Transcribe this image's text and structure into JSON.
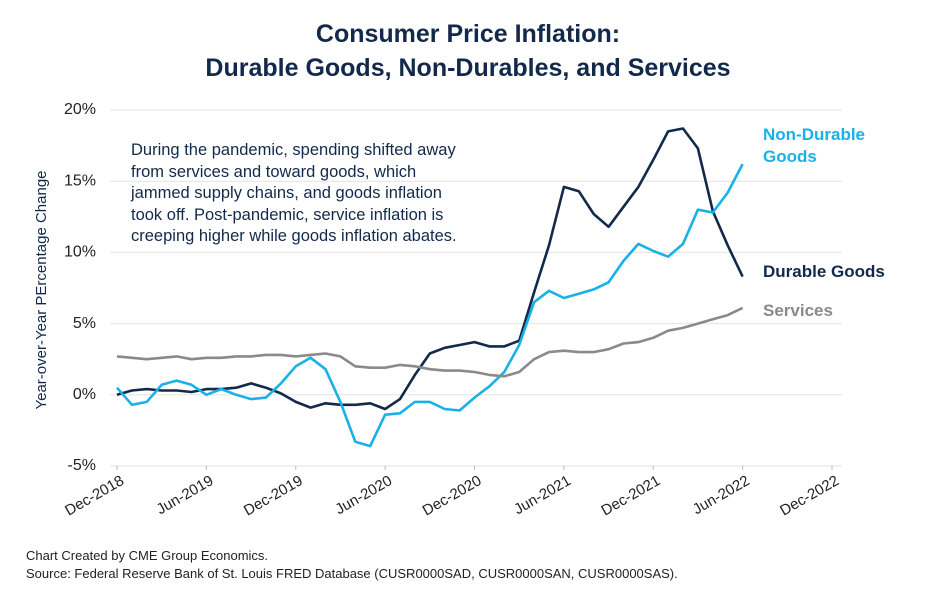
{
  "chart_data": {
    "type": "line",
    "title": "Consumer Price Inflation:",
    "subtitle": "Durable Goods, Non-Durables, and Services",
    "y_label": "Year-over-Year PErcentage Change",
    "annotation": "During the pandemic, spending shifted away from services and toward goods, which jammed supply chains, and goods inflation took off.  Post-pandemic, service inflation is creeping higher while goods inflation abates.",
    "notes": [
      "Chart Created by CME Group Economics.",
      "Source: Federal Reserve Bank of St. Louis FRED Database (CUSR0000SAD, CUSR0000SAN, CUSR0000SAS)."
    ],
    "x": [
      "2018-12",
      "2019-01",
      "2019-02",
      "2019-03",
      "2019-04",
      "2019-05",
      "2019-06",
      "2019-07",
      "2019-08",
      "2019-09",
      "2019-10",
      "2019-11",
      "2019-12",
      "2020-01",
      "2020-02",
      "2020-03",
      "2020-04",
      "2020-05",
      "2020-06",
      "2020-07",
      "2020-08",
      "2020-09",
      "2020-10",
      "2020-11",
      "2020-12",
      "2021-01",
      "2021-02",
      "2021-03",
      "2021-04",
      "2021-05",
      "2021-06",
      "2021-07",
      "2021-08",
      "2021-09",
      "2021-10",
      "2021-11",
      "2021-12",
      "2022-01",
      "2022-02",
      "2022-03",
      "2022-04",
      "2022-05",
      "2022-06"
    ],
    "series": [
      {
        "name": "Durable Goods",
        "color": "#13294b",
        "values": [
          0,
          0.3,
          0.4,
          0.3,
          0.3,
          0.2,
          0.4,
          0.4,
          0.5,
          0.8,
          0.5,
          0.1,
          -0.5,
          -0.9,
          -0.6,
          -0.7,
          -0.7,
          -0.6,
          -1.0,
          -0.3,
          1.4,
          2.9,
          3.3,
          3.5,
          3.7,
          3.4,
          3.4,
          3.8,
          7.2,
          10.5,
          14.6,
          14.3,
          12.7,
          11.8,
          13.2,
          14.6,
          16.5,
          18.5,
          18.7,
          17.3,
          12.9,
          10.5,
          8.3
        ]
      },
      {
        "name": "Non-Durable Goods",
        "color": "#1ab0e8",
        "values": [
          0.5,
          -0.7,
          -0.5,
          0.7,
          1.0,
          0.7,
          0.0,
          0.4,
          0.0,
          -0.3,
          -0.2,
          0.8,
          2.0,
          2.6,
          1.8,
          -0.5,
          -3.3,
          -3.6,
          -1.4,
          -1.3,
          -0.5,
          -0.5,
          -1.0,
          -1.1,
          -0.2,
          0.6,
          1.6,
          3.5,
          6.5,
          7.3,
          6.8,
          7.1,
          7.4,
          7.9,
          9.4,
          10.6,
          10.1,
          9.7,
          10.6,
          13.0,
          12.8,
          14.2,
          16.2
        ]
      },
      {
        "name": "Services",
        "color": "#8a8a8a",
        "values": [
          2.7,
          2.6,
          2.5,
          2.6,
          2.7,
          2.5,
          2.6,
          2.6,
          2.7,
          2.7,
          2.8,
          2.8,
          2.7,
          2.8,
          2.9,
          2.7,
          2.0,
          1.9,
          1.9,
          2.1,
          2.0,
          1.8,
          1.7,
          1.7,
          1.6,
          1.4,
          1.3,
          1.6,
          2.5,
          3.0,
          3.1,
          3.0,
          3.0,
          3.2,
          3.6,
          3.7,
          4.0,
          4.5,
          4.7,
          5.0,
          5.3,
          5.6,
          6.1
        ]
      }
    ],
    "xlim": [
      "2018-12",
      "2022-12"
    ],
    "xticks": [
      {
        "value": "2018-12",
        "label": "Dec-2018"
      },
      {
        "value": "2019-06",
        "label": "Jun-2019"
      },
      {
        "value": "2019-12",
        "label": "Dec-2019"
      },
      {
        "value": "2020-06",
        "label": "Jun-2020"
      },
      {
        "value": "2020-12",
        "label": "Dec-2020"
      },
      {
        "value": "2021-06",
        "label": "Jun-2021"
      },
      {
        "value": "2021-12",
        "label": "Dec-2021"
      },
      {
        "value": "2022-06",
        "label": "Jun-2022"
      },
      {
        "value": "2022-12",
        "label": "Dec-2022"
      }
    ],
    "ylim": [
      -5,
      20
    ],
    "yticks": [
      {
        "value": -5,
        "label": "-5%"
      },
      {
        "value": 0,
        "label": "0%"
      },
      {
        "value": 5,
        "label": "5%"
      },
      {
        "value": 10,
        "label": "10%"
      },
      {
        "value": 15,
        "label": "15%"
      },
      {
        "value": 20,
        "label": "20%"
      }
    ],
    "grid": true
  }
}
